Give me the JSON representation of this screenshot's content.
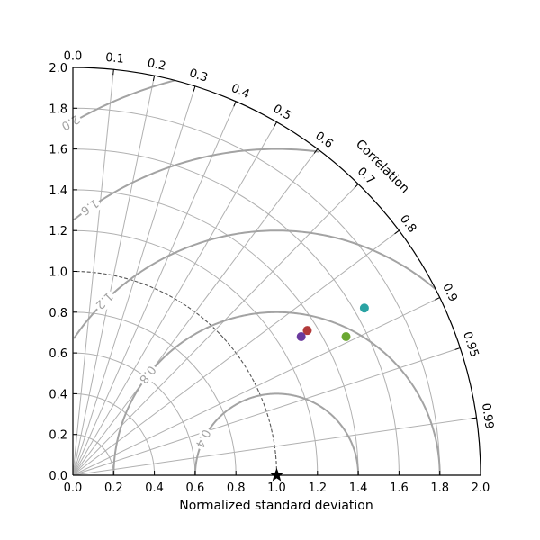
{
  "chart_data": {
    "type": "scatter",
    "subtype": "taylor-diagram",
    "xlabel": "Normalized standard deviation",
    "ylabel": "",
    "corr_label": "Correlation",
    "xlim": [
      0,
      2.0
    ],
    "ylim": [
      0,
      2.0
    ],
    "x_ticks": [
      "0.0",
      "0.2",
      "0.4",
      "0.6",
      "0.8",
      "1.0",
      "1.2",
      "1.4",
      "1.6",
      "1.8",
      "2.0"
    ],
    "y_ticks": [
      "0.0",
      "0.2",
      "0.4",
      "0.6",
      "0.8",
      "1.0",
      "1.2",
      "1.4",
      "1.6",
      "1.8",
      "2.0"
    ],
    "corr_ticks": [
      "0.0",
      "0.1",
      "0.2",
      "0.3",
      "0.4",
      "0.5",
      "0.6",
      "0.7",
      "0.8",
      "0.9",
      "0.95",
      "0.99"
    ],
    "std_grid": [
      0.2,
      0.4,
      0.6,
      0.8,
      1.0,
      1.2,
      1.4,
      1.6,
      1.8
    ],
    "rms_contours": [
      0.4,
      0.8,
      1.2,
      1.6,
      2.0
    ],
    "rms_labels": [
      "0.4",
      "0.8",
      "1.2",
      "1.6",
      "2.0"
    ],
    "reference": {
      "std": 1.0,
      "corr": 1.0
    },
    "points": [
      {
        "x": 1.15,
        "y": 0.71,
        "color": "#b23a3a"
      },
      {
        "x": 1.12,
        "y": 0.68,
        "color": "#6a3a9e"
      },
      {
        "x": 1.43,
        "y": 0.82,
        "color": "#2aa3a3"
      },
      {
        "x": 1.34,
        "y": 0.68,
        "color": "#6aa832"
      }
    ],
    "colors": {
      "grid": "#b0b0b0",
      "contour": "#a3a3a3",
      "axis": "#000000"
    }
  }
}
